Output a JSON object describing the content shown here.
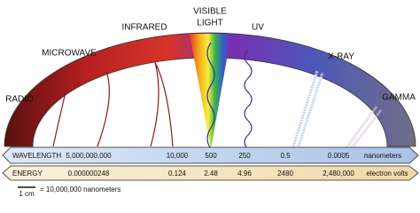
{
  "bands": {
    "radio": "RADIO",
    "microwave": "MICROWAVE",
    "infrared": "INFRARED",
    "visible_line1": "VISIBLE",
    "visible_line2": "LIGHT",
    "uv": "UV",
    "xray": "X-RAY",
    "gamma": "GAMMA"
  },
  "wavelength": {
    "label": "WAVELENGTH",
    "values": [
      "5,000,000,000",
      "10,000",
      "500",
      "250",
      "0.5",
      "0.0005"
    ],
    "unit": "nanometers"
  },
  "energy": {
    "label": "ENERGY",
    "values": [
      "0.000000248",
      "0.124",
      "2.48",
      "4.96",
      "2480",
      "2,480,000"
    ],
    "unit": "electron volts"
  },
  "scale": {
    "length": "1 cm",
    "equals": "= 10,000,000 nanometers"
  }
}
